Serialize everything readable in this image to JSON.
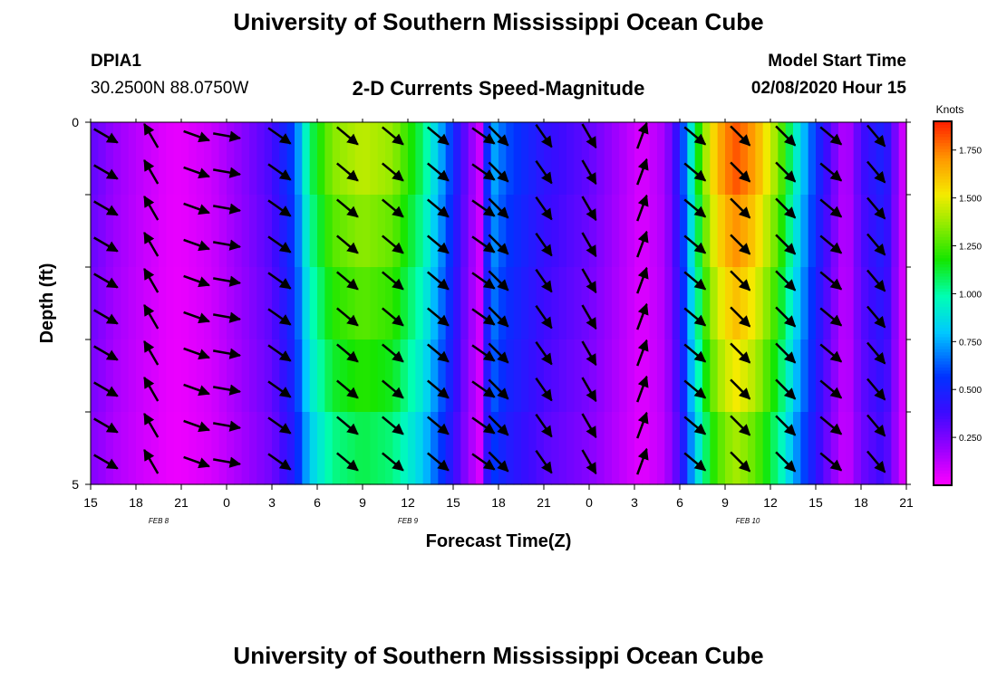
{
  "page": {
    "title_top": "University of Southern Mississippi Ocean Cube",
    "title_bottom": "University of Southern Mississippi Ocean Cube",
    "station": "DPIA1",
    "location": "30.2500N 88.0750W",
    "subtitle": "2-D Currents Speed-Magnitude",
    "model_label": "Model Start Time",
    "model_time": "02/08/2020 Hour 15"
  },
  "chart_data": {
    "type": "heatmap",
    "title": "2-D Currents Speed-Magnitude",
    "xlabel": "Forecast Time(Z)",
    "ylabel": "Depth (ft)",
    "units": "Knots",
    "x_ticks": [
      "15",
      "18",
      "21",
      "0",
      "3",
      "6",
      "9",
      "12",
      "15",
      "18",
      "21",
      "0",
      "3",
      "6",
      "9",
      "12",
      "15",
      "18",
      "21"
    ],
    "x_hours": [
      0,
      3,
      6,
      9,
      12,
      15,
      18,
      21,
      24,
      27,
      30,
      33,
      36,
      39,
      42,
      45,
      48,
      51,
      54
    ],
    "date_labels": [
      {
        "text": "FEB 8",
        "hour": 4.5
      },
      {
        "text": "FEB 9",
        "hour": 21
      },
      {
        "text": "FEB 10",
        "hour": 43.5
      }
    ],
    "y_ticks": [
      "0",
      "5"
    ],
    "depth_range": [
      0,
      5
    ],
    "layers": 5,
    "colorbar_min": 0,
    "colorbar_max": 1.9,
    "colorbar_ticks": [
      "0.250",
      "0.500",
      "0.750",
      "1.000",
      "1.250",
      "1.500",
      "1.750"
    ],
    "colorbar_values": [
      0.25,
      0.5,
      0.75,
      1.0,
      1.25,
      1.5,
      1.75
    ],
    "speed_profile": [
      {
        "hour": 0,
        "v": 0.28
      },
      {
        "hour": 1.5,
        "v": 0.18
      },
      {
        "hour": 3,
        "v": 0.12
      },
      {
        "hour": 5,
        "v": 0.05
      },
      {
        "hour": 6,
        "v": 0.04
      },
      {
        "hour": 8,
        "v": 0.09
      },
      {
        "hour": 10,
        "v": 0.2
      },
      {
        "hour": 12,
        "v": 0.32
      },
      {
        "hour": 13.5,
        "v": 0.55
      },
      {
        "hour": 14.5,
        "v": 0.95
      },
      {
        "hour": 16,
        "v": 1.2
      },
      {
        "hour": 18,
        "v": 1.28
      },
      {
        "hour": 20,
        "v": 1.22
      },
      {
        "hour": 22,
        "v": 0.95
      },
      {
        "hour": 23.5,
        "v": 0.6
      },
      {
        "hour": 25,
        "v": 0.22
      },
      {
        "hour": 25.8,
        "v": 0.08
      },
      {
        "hour": 26.5,
        "v": 0.7
      },
      {
        "hour": 27.5,
        "v": 0.55
      },
      {
        "hour": 30,
        "v": 0.38
      },
      {
        "hour": 33,
        "v": 0.27
      },
      {
        "hour": 35,
        "v": 0.15
      },
      {
        "hour": 36.5,
        "v": 0.06
      },
      {
        "hour": 38,
        "v": 0.15
      },
      {
        "hour": 39,
        "v": 0.42
      },
      {
        "hour": 40,
        "v": 0.95
      },
      {
        "hour": 41,
        "v": 1.35
      },
      {
        "hour": 42,
        "v": 1.55
      },
      {
        "hour": 42.8,
        "v": 1.62
      },
      {
        "hour": 44,
        "v": 1.5
      },
      {
        "hour": 45.5,
        "v": 1.2
      },
      {
        "hour": 47,
        "v": 0.75
      },
      {
        "hour": 48,
        "v": 0.5
      },
      {
        "hour": 49,
        "v": 0.28
      },
      {
        "hour": 50,
        "v": 0.1
      },
      {
        "hour": 51,
        "v": 0.32
      },
      {
        "hour": 52.5,
        "v": 0.45
      },
      {
        "hour": 54,
        "v": 0.02
      }
    ],
    "layer_factors": [
      1.12,
      1.06,
      1.0,
      0.94,
      0.86
    ],
    "vector_hours": [
      1,
      4,
      7,
      9,
      12.5,
      17,
      20,
      23,
      26,
      27,
      30,
      33,
      36.5,
      40,
      43,
      46,
      49,
      52
    ],
    "vector_directions_deg": [
      120,
      330,
      110,
      100,
      125,
      130,
      130,
      130,
      125,
      135,
      145,
      150,
      20,
      130,
      135,
      135,
      130,
      140
    ]
  }
}
